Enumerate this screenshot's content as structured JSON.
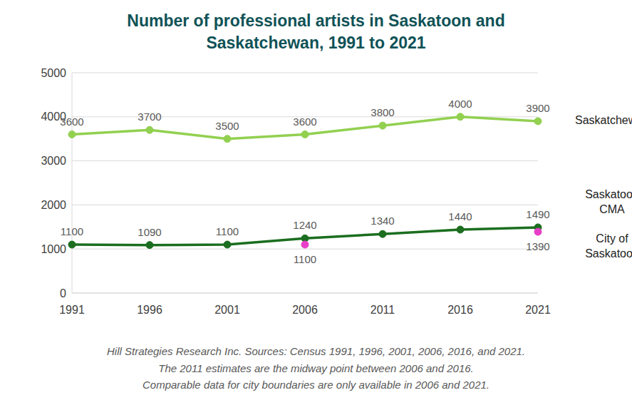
{
  "chart_data": {
    "type": "line",
    "title": "Number of professional artists in Saskatoon and Saskatchewan, 1991 to 2021",
    "categories": [
      "1991",
      "1996",
      "2001",
      "2006",
      "2011",
      "2016",
      "2021"
    ],
    "series": [
      {
        "name": "Saskatchewan",
        "color": "#92d050",
        "marker": "circle",
        "values": [
          3600,
          3700,
          3500,
          3600,
          3800,
          4000,
          3900
        ]
      },
      {
        "name": "Saskatoon CMA",
        "color": "#1b6e1f",
        "marker": "circle",
        "values": [
          1100,
          1090,
          1100,
          1240,
          1340,
          1440,
          1490
        ]
      },
      {
        "name": "City of Saskatoon",
        "color": "#e83ec8",
        "type": "scatter",
        "marker": "circle",
        "values": [
          null,
          null,
          null,
          1100,
          null,
          null,
          1390
        ]
      }
    ],
    "ylim": [
      0,
      5000
    ],
    "yticks": [
      0,
      1000,
      2000,
      3000,
      4000,
      5000
    ],
    "grid": true,
    "data_labels": true,
    "annotations": [
      "Hill Strategies Research Inc. Sources: Census 1991, 1996, 2001, 2006, 2016, and 2021.",
      "The 2011 estimates are the midway point between 2006 and 2016.",
      "Comparable data for city boundaries are only available in 2006 and 2021."
    ]
  }
}
